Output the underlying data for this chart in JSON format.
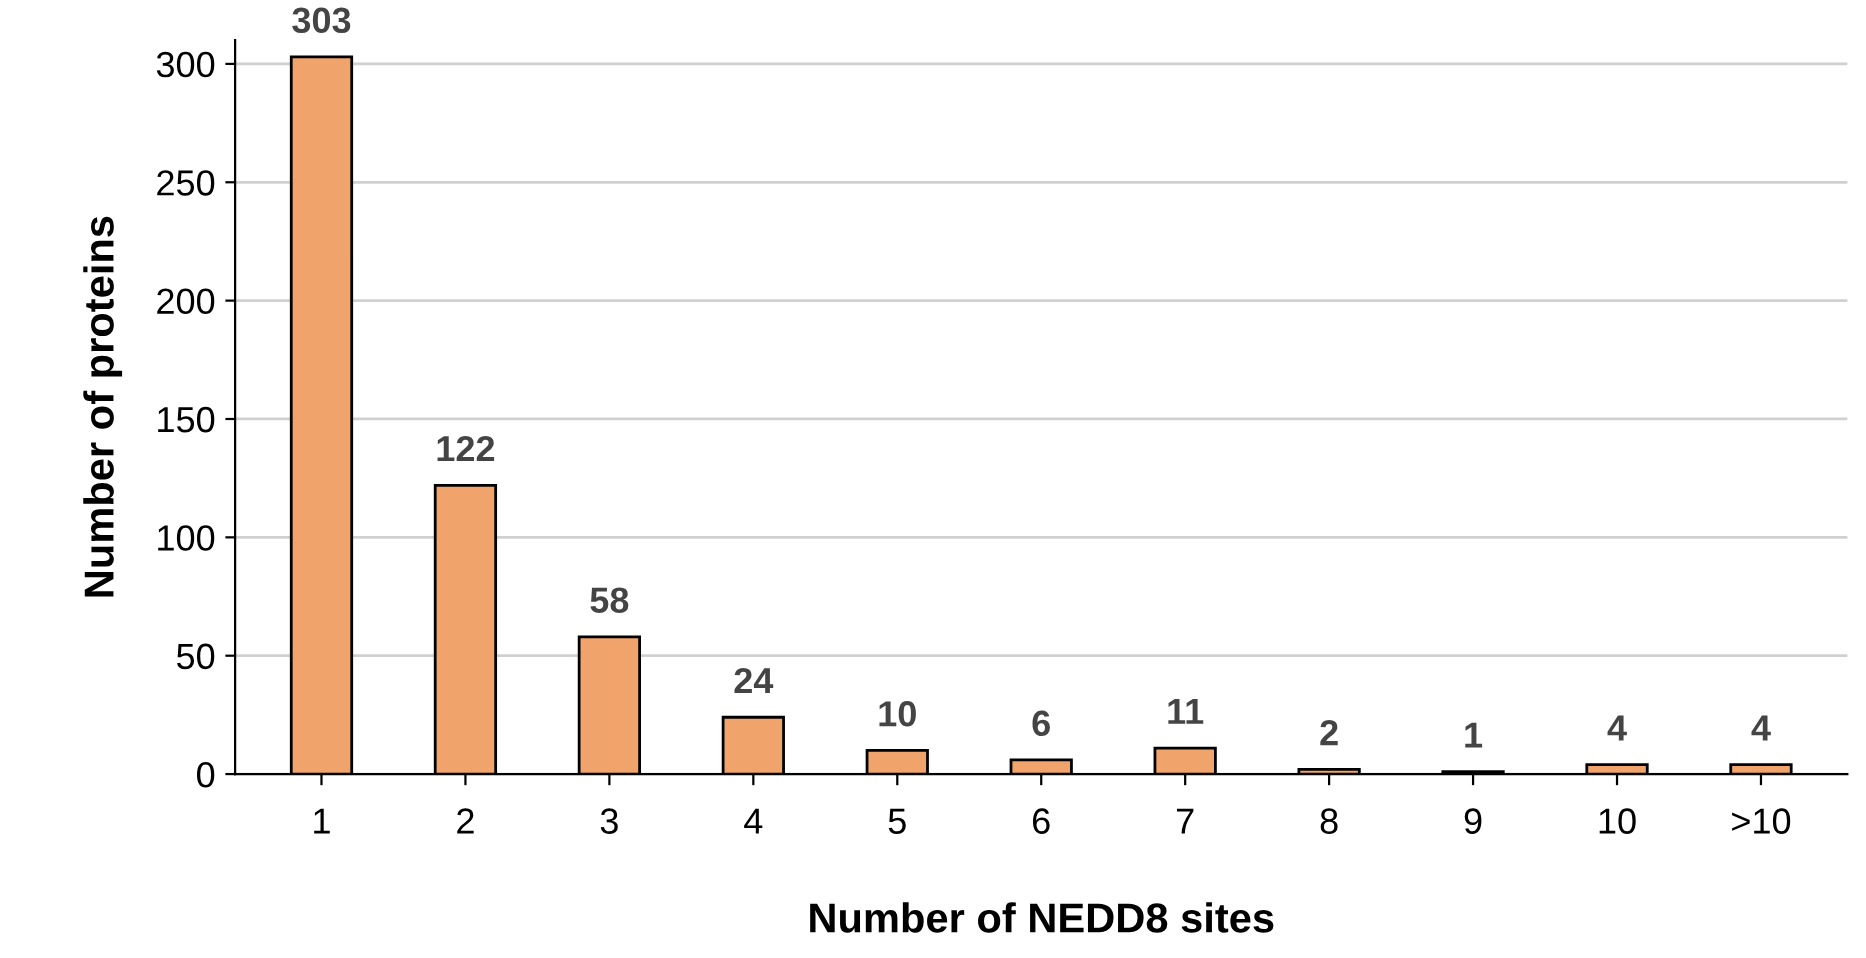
{
  "chart_data": {
    "type": "bar",
    "xlabel": "Number of NEDD8 sites",
    "ylabel": "Number of proteins",
    "categories": [
      "1",
      "2",
      "3",
      "4",
      "5",
      "6",
      "7",
      "8",
      "9",
      "10",
      ">10"
    ],
    "values": [
      303,
      122,
      58,
      24,
      10,
      6,
      11,
      2,
      1,
      4,
      4
    ],
    "color": "#f0a46c",
    "ylim": [
      0,
      310
    ],
    "yticks": [
      0,
      50,
      100,
      150,
      200,
      250,
      300
    ],
    "grid": "y",
    "data_labels": true,
    "legend": false
  }
}
